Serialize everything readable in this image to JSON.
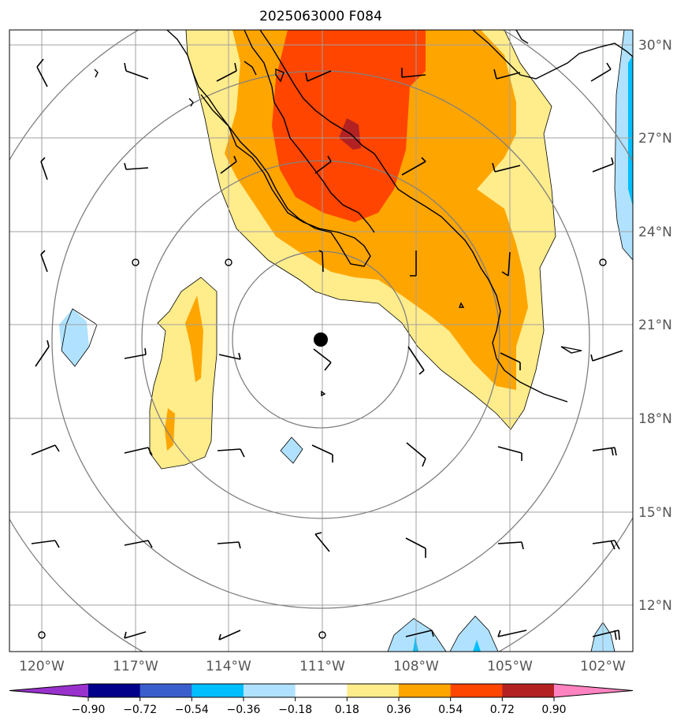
{
  "title": "2025063000 F084",
  "map": {
    "lon_ticks": [
      "120°W",
      "117°W",
      "114°W",
      "111°W",
      "108°W",
      "105°W",
      "102°W"
    ],
    "lat_ticks": [
      "30°N",
      "27°N",
      "24°N",
      "21°N",
      "18°N",
      "15°N",
      "12°N"
    ],
    "lon_range": [
      -121,
      -101
    ],
    "lat_range": [
      10.5,
      30.5
    ],
    "grid": true,
    "storm_center": {
      "lon": -111.0,
      "lat": 20.6
    },
    "range_rings": "concentric circles around storm center"
  },
  "colorbar": {
    "tick_labels": [
      "−0.90",
      "−0.72",
      "−0.54",
      "−0.36",
      "−0.18",
      "0.18",
      "0.36",
      "0.54",
      "0.72",
      "0.90"
    ],
    "colors": [
      "#9932cc",
      "#00008b",
      "#3a5fcd",
      "#00bfff",
      "#b0e2ff",
      "#ffffff",
      "#ffec8b",
      "#ffa500",
      "#ff4500",
      "#b22222",
      "#ff83c0"
    ],
    "extend": "both"
  },
  "fill_colors": {
    "light_yellow": "#ffec8b",
    "orange": "#ffa500",
    "red_orange": "#ff4500",
    "dark_red": "#b22222",
    "light_blue": "#b0e2ff",
    "blue": "#00bfff"
  }
}
